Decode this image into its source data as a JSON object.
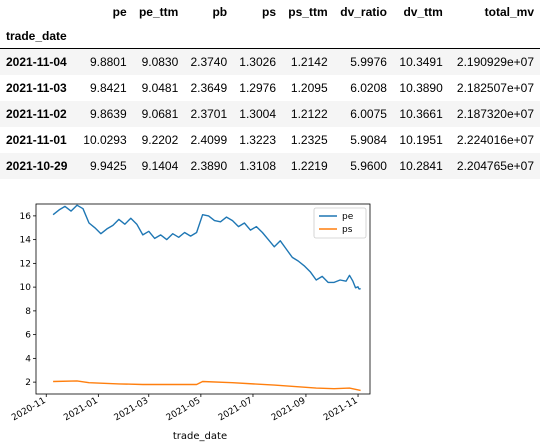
{
  "table": {
    "index_name": "trade_date",
    "columns": [
      "pe",
      "pe_ttm",
      "pb",
      "ps",
      "ps_ttm",
      "dv_ratio",
      "dv_ttm",
      "total_mv"
    ],
    "rows": [
      {
        "index": "2021-11-04",
        "cells": [
          "9.8801",
          "9.0830",
          "2.3740",
          "1.3026",
          "1.2142",
          "5.9976",
          "10.3491",
          "2.190929e+07"
        ]
      },
      {
        "index": "2021-11-03",
        "cells": [
          "9.8421",
          "9.0481",
          "2.3649",
          "1.2976",
          "1.2095",
          "6.0208",
          "10.3890",
          "2.182507e+07"
        ]
      },
      {
        "index": "2021-11-02",
        "cells": [
          "9.8639",
          "9.0681",
          "2.3701",
          "1.3004",
          "1.2122",
          "6.0075",
          "10.3661",
          "2.187320e+07"
        ]
      },
      {
        "index": "2021-11-01",
        "cells": [
          "10.0293",
          "9.2202",
          "2.4099",
          "1.3223",
          "1.2325",
          "5.9084",
          "10.1951",
          "2.224016e+07"
        ]
      },
      {
        "index": "2021-10-29",
        "cells": [
          "9.9425",
          "9.1404",
          "2.3890",
          "1.3108",
          "1.2219",
          "5.9600",
          "10.2841",
          "2.204765e+07"
        ]
      }
    ]
  },
  "chart_data": {
    "type": "line",
    "xlabel": "trade_date",
    "ylabel": "",
    "x_ticks": [
      "2020-11",
      "2021-01",
      "2021-03",
      "2021-05",
      "2021-07",
      "2021-09",
      "2021-11"
    ],
    "y_ticks": [
      "2",
      "4",
      "6",
      "8",
      "10",
      "12",
      "14",
      "16"
    ],
    "ylim": [
      1.0,
      17.0
    ],
    "xlim": [
      "2020-10-20",
      "2021-11-15"
    ],
    "legend_position": "top-right",
    "grid": false,
    "series": [
      {
        "name": "pe",
        "color": "#1f77b4",
        "points": [
          [
            "2020-11-09",
            16.1
          ],
          [
            "2020-11-16",
            16.5
          ],
          [
            "2020-11-23",
            16.8
          ],
          [
            "2020-11-30",
            16.4
          ],
          [
            "2020-12-07",
            16.9
          ],
          [
            "2020-12-14",
            16.6
          ],
          [
            "2020-12-21",
            15.4
          ],
          [
            "2020-12-28",
            15.0
          ],
          [
            "2021-01-04",
            14.5
          ],
          [
            "2021-01-11",
            14.9
          ],
          [
            "2021-01-18",
            15.2
          ],
          [
            "2021-01-25",
            15.7
          ],
          [
            "2021-02-01",
            15.3
          ],
          [
            "2021-02-08",
            15.8
          ],
          [
            "2021-02-15",
            15.3
          ],
          [
            "2021-02-22",
            14.4
          ],
          [
            "2021-03-01",
            14.7
          ],
          [
            "2021-03-08",
            14.1
          ],
          [
            "2021-03-15",
            14.4
          ],
          [
            "2021-03-22",
            14.0
          ],
          [
            "2021-03-29",
            14.5
          ],
          [
            "2021-04-05",
            14.2
          ],
          [
            "2021-04-12",
            14.6
          ],
          [
            "2021-04-19",
            14.3
          ],
          [
            "2021-04-26",
            14.6
          ],
          [
            "2021-05-03",
            16.1
          ],
          [
            "2021-05-10",
            16.0
          ],
          [
            "2021-05-17",
            15.6
          ],
          [
            "2021-05-24",
            15.5
          ],
          [
            "2021-05-31",
            15.9
          ],
          [
            "2021-06-07",
            15.6
          ],
          [
            "2021-06-14",
            15.1
          ],
          [
            "2021-06-21",
            15.4
          ],
          [
            "2021-06-28",
            14.8
          ],
          [
            "2021-07-05",
            15.1
          ],
          [
            "2021-07-12",
            14.6
          ],
          [
            "2021-07-19",
            14.0
          ],
          [
            "2021-07-26",
            13.4
          ],
          [
            "2021-08-02",
            13.9
          ],
          [
            "2021-08-09",
            13.2
          ],
          [
            "2021-08-16",
            12.5
          ],
          [
            "2021-08-23",
            12.2
          ],
          [
            "2021-08-30",
            11.8
          ],
          [
            "2021-09-06",
            11.3
          ],
          [
            "2021-09-13",
            10.6
          ],
          [
            "2021-09-20",
            10.9
          ],
          [
            "2021-09-27",
            10.4
          ],
          [
            "2021-10-04",
            10.4
          ],
          [
            "2021-10-11",
            10.6
          ],
          [
            "2021-10-18",
            10.5
          ],
          [
            "2021-10-22",
            11.0
          ],
          [
            "2021-10-26",
            10.5
          ],
          [
            "2021-10-29",
            9.94
          ],
          [
            "2021-11-01",
            10.03
          ],
          [
            "2021-11-02",
            9.86
          ],
          [
            "2021-11-03",
            9.84
          ],
          [
            "2021-11-04",
            9.88
          ]
        ]
      },
      {
        "name": "ps",
        "color": "#ff7f0e",
        "points": [
          [
            "2020-11-09",
            2.05
          ],
          [
            "2020-12-07",
            2.1
          ],
          [
            "2020-12-21",
            1.95
          ],
          [
            "2021-01-25",
            1.85
          ],
          [
            "2021-02-22",
            1.8
          ],
          [
            "2021-04-26",
            1.8
          ],
          [
            "2021-05-03",
            2.05
          ],
          [
            "2021-06-07",
            1.95
          ],
          [
            "2021-07-26",
            1.75
          ],
          [
            "2021-09-13",
            1.5
          ],
          [
            "2021-10-04",
            1.45
          ],
          [
            "2021-10-22",
            1.5
          ],
          [
            "2021-11-04",
            1.3
          ]
        ]
      }
    ]
  }
}
